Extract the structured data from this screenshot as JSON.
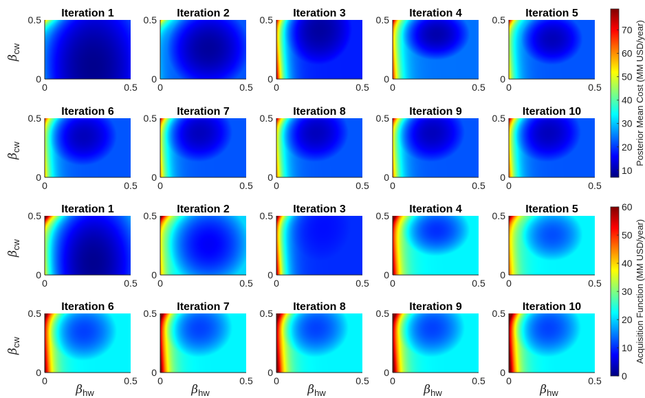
{
  "chart_data": {
    "type": "heatmap",
    "xlabel": "β",
    "xlabel_sub": "hw",
    "ylabel": "β",
    "ylabel_sub": "cw",
    "xlim": [
      0,
      0.5
    ],
    "ylim": [
      0,
      0.5
    ],
    "x_ticks": [
      "0",
      "0.5"
    ],
    "y_ticks": [
      "0",
      "0.5"
    ],
    "colormap": "jet",
    "groups": [
      {
        "id": "posterior-mean",
        "colorbar_label": "Posterior Mean Cost (MM USD/year)",
        "clim": [
          7,
          79
        ],
        "colorbar_ticks": [
          "10",
          "20",
          "30",
          "40",
          "50",
          "60",
          "70"
        ],
        "colorbar_tick_values": [
          10,
          20,
          30,
          40,
          50,
          60,
          70
        ],
        "panels": [
          {
            "title": "Iteration 1",
            "min": [
              0.28,
              0.1
            ],
            "min_value": 8,
            "left_edge_value": 13,
            "corner_value": 55,
            "spread": [
              0.28,
              0.6
            ],
            "right_edge_value": 20
          },
          {
            "title": "Iteration 2",
            "min": [
              0.28,
              0.26
            ],
            "min_value": 9,
            "left_edge_value": 16,
            "corner_value": 52,
            "spread": [
              0.24,
              0.35
            ],
            "right_edge_value": 22
          },
          {
            "title": "Iteration 3",
            "min": [
              0.24,
              0.42
            ],
            "min_value": 9,
            "left_edge_value": 68,
            "corner_value": 40,
            "spread": [
              0.2,
              0.3
            ],
            "right_edge_value": 18
          },
          {
            "title": "Iteration 4",
            "min": [
              0.25,
              0.38
            ],
            "min_value": 10,
            "left_edge_value": 56,
            "corner_value": 48,
            "spread": [
              0.2,
              0.22
            ],
            "right_edge_value": 24
          },
          {
            "title": "Iteration 5",
            "min": [
              0.25,
              0.34
            ],
            "min_value": 11,
            "left_edge_value": 44,
            "corner_value": 56,
            "spread": [
              0.18,
              0.22
            ],
            "right_edge_value": 22
          },
          {
            "title": "Iteration 6",
            "min": [
              0.22,
              0.35
            ],
            "min_value": 11,
            "left_edge_value": 46,
            "corner_value": 48,
            "spread": [
              0.2,
              0.25
            ],
            "right_edge_value": 22
          },
          {
            "title": "Iteration 7",
            "min": [
              0.22,
              0.38
            ],
            "min_value": 11,
            "left_edge_value": 50,
            "corner_value": 52,
            "spread": [
              0.2,
              0.25
            ],
            "right_edge_value": 22
          },
          {
            "title": "Iteration 8",
            "min": [
              0.22,
              0.38
            ],
            "min_value": 11,
            "left_edge_value": 52,
            "corner_value": 54,
            "spread": [
              0.2,
              0.25
            ],
            "right_edge_value": 22
          },
          {
            "title": "Iteration 9",
            "min": [
              0.22,
              0.38
            ],
            "min_value": 11,
            "left_edge_value": 52,
            "corner_value": 54,
            "spread": [
              0.2,
              0.25
            ],
            "right_edge_value": 22
          },
          {
            "title": "Iteration 10",
            "min": [
              0.22,
              0.38
            ],
            "min_value": 11,
            "left_edge_value": 54,
            "corner_value": 54,
            "spread": [
              0.2,
              0.25
            ],
            "right_edge_value": 22
          }
        ]
      },
      {
        "id": "acquisition",
        "colorbar_label": "Acquisition Function (MM USD/year)",
        "clim": [
          0,
          60
        ],
        "colorbar_ticks": [
          "0",
          "10",
          "20",
          "30",
          "40",
          "50",
          "60"
        ],
        "colorbar_tick_values": [
          0,
          10,
          20,
          30,
          40,
          50,
          60
        ],
        "panels": [
          {
            "title": "Iteration 1",
            "min": [
              0.28,
              0.1
            ],
            "min_value": 1,
            "left_edge_value": 22,
            "corner_value": 60,
            "spread": [
              0.28,
              0.6
            ],
            "right_edge_value": 16
          },
          {
            "title": "Iteration 2",
            "min": [
              0.28,
              0.26
            ],
            "min_value": 7,
            "left_edge_value": 30,
            "corner_value": 54,
            "spread": [
              0.24,
              0.35
            ],
            "right_edge_value": 20
          },
          {
            "title": "Iteration 3",
            "min": [
              0.25,
              0.42
            ],
            "min_value": 8,
            "left_edge_value": 58,
            "corner_value": 48,
            "spread": [
              0.18,
              0.3
            ],
            "right_edge_value": 10
          },
          {
            "title": "Iteration 4",
            "min": [
              0.25,
              0.38
            ],
            "min_value": 10,
            "left_edge_value": 50,
            "corner_value": 50,
            "spread": [
              0.2,
              0.22
            ],
            "right_edge_value": 22
          },
          {
            "title": "Iteration 5",
            "min": [
              0.25,
              0.34
            ],
            "min_value": 12,
            "left_edge_value": 38,
            "corner_value": 52,
            "spread": [
              0.18,
              0.22
            ],
            "right_edge_value": 22
          },
          {
            "title": "Iteration 6",
            "min": [
              0.22,
              0.35
            ],
            "min_value": 11,
            "left_edge_value": 52,
            "corner_value": 46,
            "spread": [
              0.2,
              0.25
            ],
            "right_edge_value": 22
          },
          {
            "title": "Iteration 7",
            "min": [
              0.22,
              0.38
            ],
            "min_value": 11,
            "left_edge_value": 55,
            "corner_value": 48,
            "spread": [
              0.2,
              0.25
            ],
            "right_edge_value": 22
          },
          {
            "title": "Iteration 8",
            "min": [
              0.22,
              0.38
            ],
            "min_value": 11,
            "left_edge_value": 58,
            "corner_value": 50,
            "spread": [
              0.2,
              0.25
            ],
            "right_edge_value": 22
          },
          {
            "title": "Iteration 9",
            "min": [
              0.22,
              0.38
            ],
            "min_value": 11,
            "left_edge_value": 58,
            "corner_value": 50,
            "spread": [
              0.2,
              0.25
            ],
            "right_edge_value": 22
          },
          {
            "title": "Iteration 10",
            "min": [
              0.22,
              0.38
            ],
            "min_value": 11,
            "left_edge_value": 60,
            "corner_value": 50,
            "spread": [
              0.2,
              0.25
            ],
            "right_edge_value": 22
          }
        ]
      }
    ]
  }
}
